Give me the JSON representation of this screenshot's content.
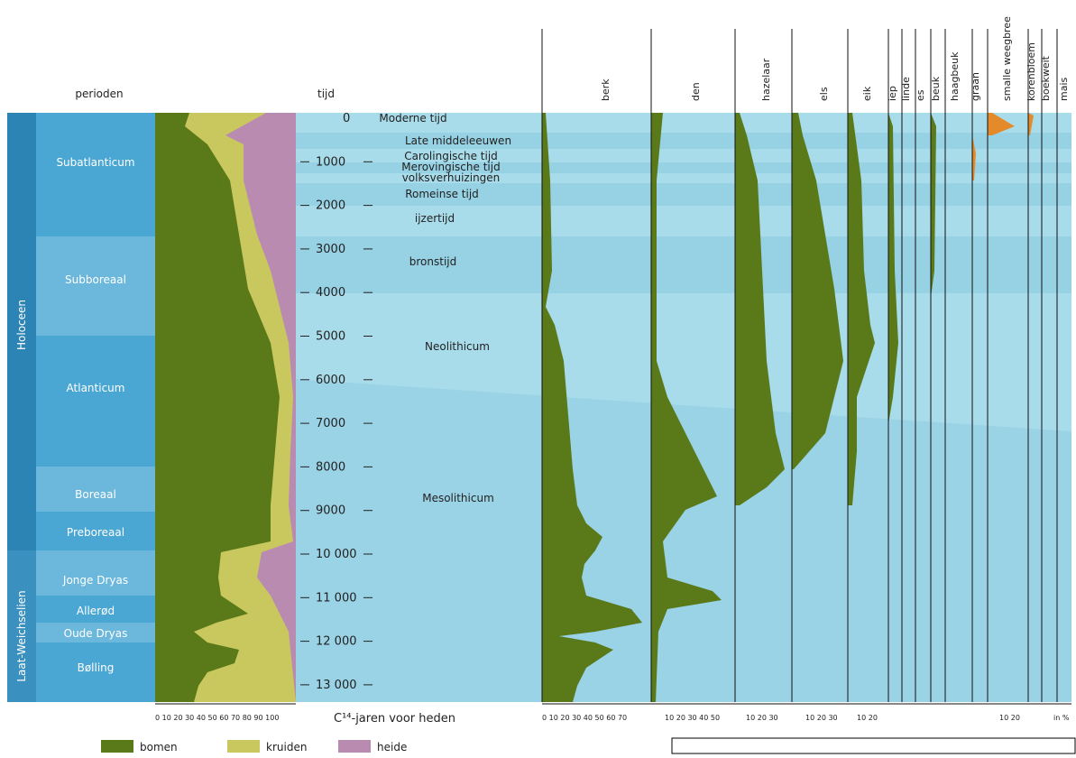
{
  "header": {
    "periods_title": "perioden",
    "time_title": "tijd"
  },
  "epochs": [
    "Holoceen",
    "Laat-Weichselien"
  ],
  "periods": [
    "Subatlanticum",
    "Subboreaal",
    "Atlanticum",
    "Boreaal",
    "Preboreaal",
    "Jonge Dryas",
    "Allerød",
    "Oude Dryas",
    "Bølling"
  ],
  "time_ticks": [
    "0",
    "1000",
    "2000",
    "3000",
    "4000",
    "5000",
    "6000",
    "7000",
    "8000",
    "9000",
    "10 000",
    "11 000",
    "12 000",
    "13 000"
  ],
  "cultures": [
    "Moderne tijd",
    "Late middeleeuwen",
    "Carolingische tijd",
    "Merovingische tijd",
    "volksverhuizingen",
    "Romeinse tijd",
    "ijzertijd",
    "bronstijd",
    "Neolithicum",
    "Mesolithicum"
  ],
  "taxa": [
    "berk",
    "den",
    "hazelaar",
    "els",
    "eik",
    "iep",
    "linde",
    "es",
    "beuk",
    "haagbeuk",
    "graan",
    "smalle weegbree",
    "korenbloem",
    "boekweit",
    "mais"
  ],
  "scales": {
    "left": "0 10 20 30 40 50 60 70 80 90 100",
    "time_axis": "C¹⁴-jaren voor heden",
    "berk": "0 10 20 30 40 50 60 70",
    "den": "10 20 30 40 50",
    "hazelaar": "10 20 30",
    "els": "10 20 30",
    "eik": "10 20",
    "weegbree": "10 20",
    "unit": "in %"
  },
  "legend": [
    "bomen",
    "kruiden",
    "heide"
  ]
}
